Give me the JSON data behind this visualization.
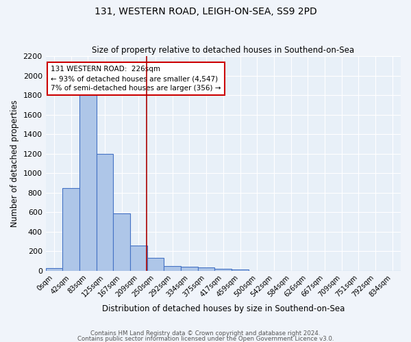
{
  "title1": "131, WESTERN ROAD, LEIGH-ON-SEA, SS9 2PD",
  "title2": "Size of property relative to detached houses in Southend-on-Sea",
  "xlabel": "Distribution of detached houses by size in Southend-on-Sea",
  "ylabel": "Number of detached properties",
  "bar_labels": [
    "0sqm",
    "42sqm",
    "83sqm",
    "125sqm",
    "167sqm",
    "209sqm",
    "250sqm",
    "292sqm",
    "334sqm",
    "375sqm",
    "417sqm",
    "459sqm",
    "500sqm",
    "542sqm",
    "584sqm",
    "626sqm",
    "667sqm",
    "709sqm",
    "751sqm",
    "792sqm",
    "834sqm"
  ],
  "bar_values": [
    25,
    845,
    1800,
    1200,
    590,
    255,
    130,
    45,
    40,
    30,
    20,
    15,
    0,
    0,
    0,
    0,
    0,
    0,
    0,
    0,
    0
  ],
  "bar_color": "#aec6e8",
  "bar_edge_color": "#4472c4",
  "bg_color": "#e8f0f8",
  "fig_bg_color": "#f0f4fa",
  "grid_color": "#ffffff",
  "annotation_line1": "131 WESTERN ROAD:  226sqm",
  "annotation_line2": "← 93% of detached houses are smaller (4,547)",
  "annotation_line3": "7% of semi-detached houses are larger (356) →",
  "annotation_box_color": "#ffffff",
  "annotation_box_edge_color": "#cc0000",
  "red_line_x": 5.45,
  "ylim": [
    0,
    2200
  ],
  "yticks": [
    0,
    200,
    400,
    600,
    800,
    1000,
    1200,
    1400,
    1600,
    1800,
    2000,
    2200
  ],
  "footer1": "Contains HM Land Registry data © Crown copyright and database right 2024.",
  "footer2": "Contains public sector information licensed under the Open Government Licence v3.0."
}
